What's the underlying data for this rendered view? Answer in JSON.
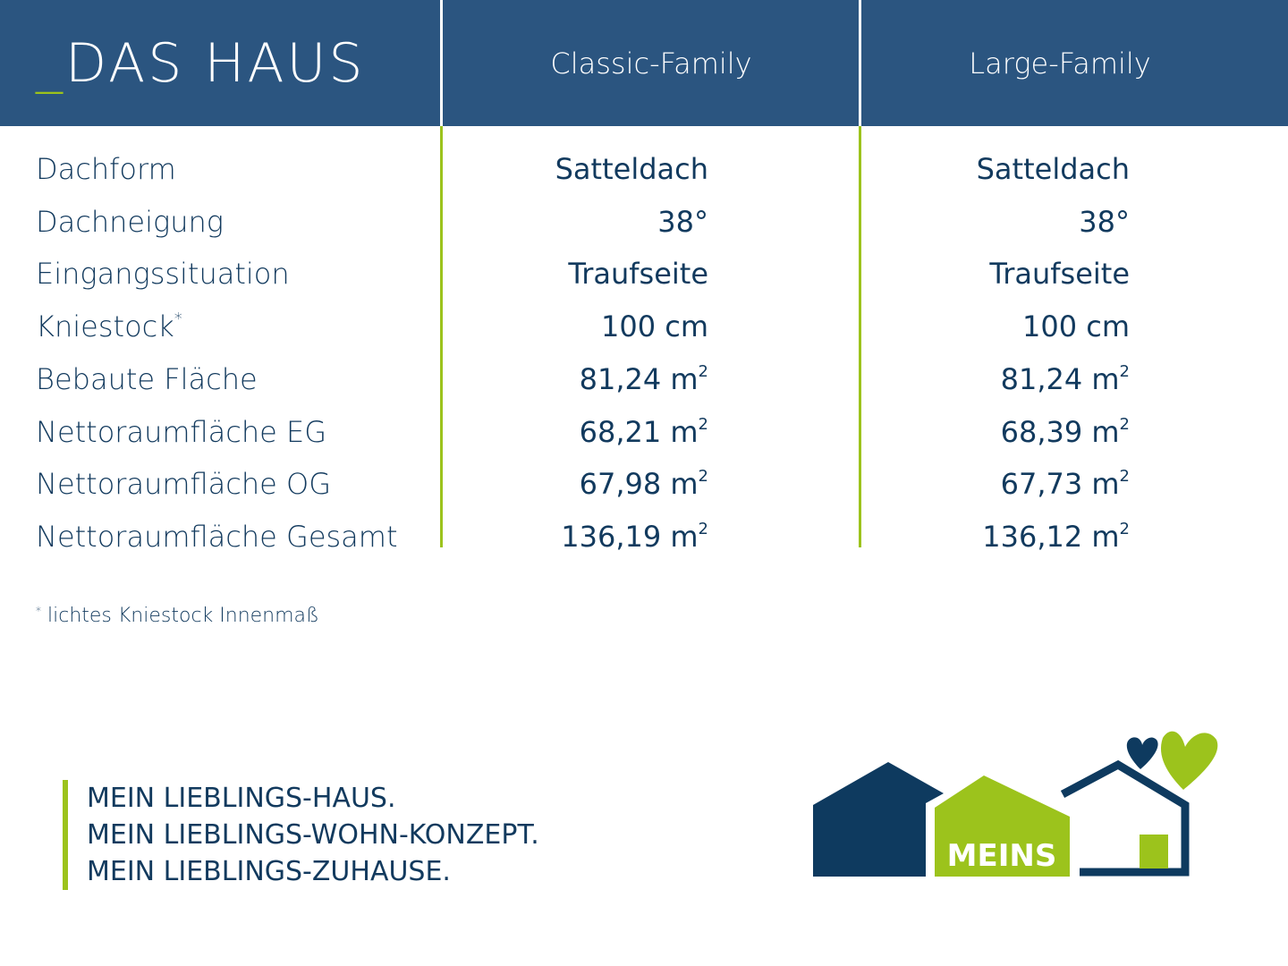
{
  "header": {
    "title_prefix": "_",
    "title": "DAS HAUS",
    "columns": [
      "Classic-Family",
      "Large-Family"
    ]
  },
  "rows": [
    {
      "label": "Dachform",
      "sup": "",
      "v1": "Satteldach",
      "v2": "Satteldach",
      "unit_sup": ""
    },
    {
      "label": "Dachneigung",
      "sup": "",
      "v1": "38°",
      "v2": "38°",
      "unit_sup": ""
    },
    {
      "label": "Eingangssituation",
      "sup": "",
      "v1": "Traufseite",
      "v2": "Traufseite",
      "unit_sup": ""
    },
    {
      "label": "Kniestock",
      "sup": "*",
      "v1": "100 cm",
      "v2": "100 cm",
      "unit_sup": ""
    },
    {
      "label": "Bebaute Fläche",
      "sup": "",
      "v1": "81,24 m",
      "v2": "81,24 m",
      "unit_sup": "2"
    },
    {
      "label": "Nettoraumfläche EG",
      "sup": "",
      "v1": "68,21 m",
      "v2": "68,39 m",
      "unit_sup": "2"
    },
    {
      "label": "Nettoraumfläche OG",
      "sup": "",
      "v1": "67,98 m",
      "v2": "67,73 m",
      "unit_sup": "2"
    },
    {
      "label": "Nettoraumfläche Gesamt",
      "sup": "",
      "v1": "136,19 m",
      "v2": "136,12 m",
      "unit_sup": "2"
    }
  ],
  "footnote": {
    "mark": "*",
    "text": "lichtes Kniestock Innenmaß"
  },
  "slogan": [
    "MEIN LIEBLINGS-HAUS.",
    "MEIN LIEBLINGS-WOHN-KONZEPT.",
    "MEIN LIEBLINGS-ZUHAUSE."
  ],
  "logo": {
    "text": "MEINS"
  },
  "colors": {
    "header": "#2b5580",
    "accent": "#9cc31c",
    "navy": "#0e3a5f"
  }
}
